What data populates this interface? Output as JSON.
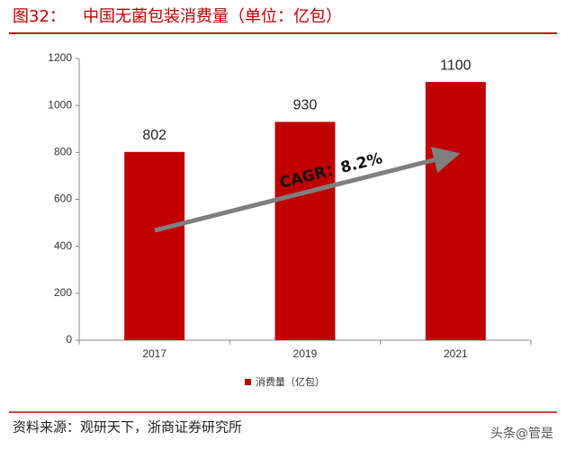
{
  "chart_data": {
    "type": "bar",
    "figure_label": "图32：",
    "title": "中国无菌包装消费量（单位：亿包）",
    "categories": [
      "2017",
      "2019",
      "2021"
    ],
    "series": [
      {
        "name": "消费量（亿包）",
        "color": "#c00000",
        "values": [
          802,
          930,
          1100
        ]
      }
    ],
    "ylim": [
      0,
      1200
    ],
    "yticks": [
      0,
      200,
      400,
      600,
      800,
      1000,
      1200
    ],
    "annotation": "CAGR：8.2%",
    "legend": "bottom",
    "source": "资料来源：观研天下，浙商证券研究所",
    "watermark": "头条@管是"
  }
}
